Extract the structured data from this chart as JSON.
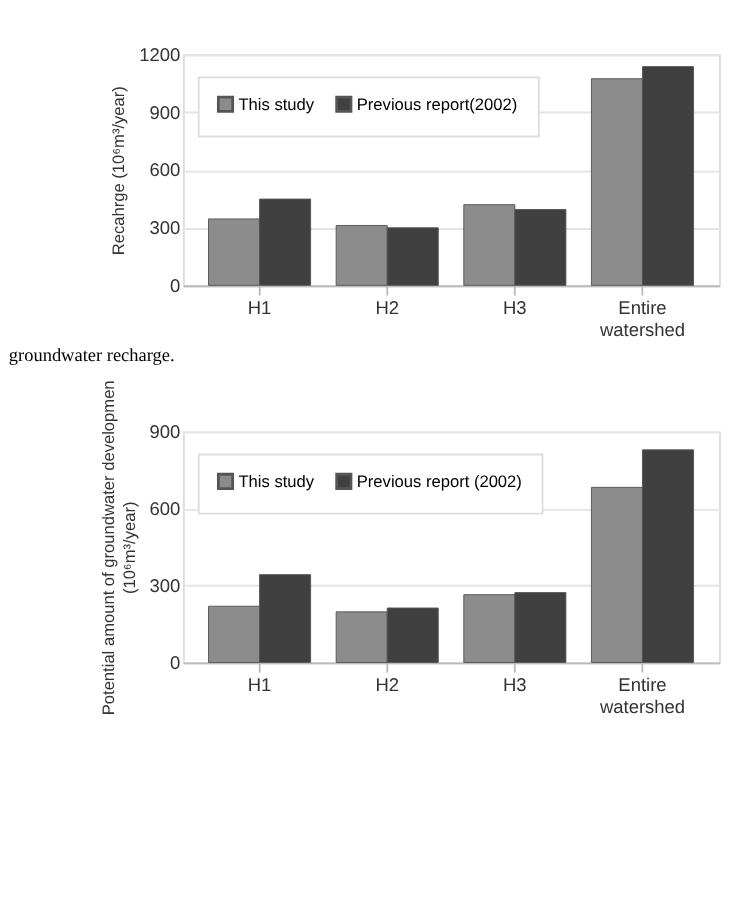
{
  "chart_data": [
    {
      "type": "bar",
      "categories": [
        "H1",
        "H2",
        "H3",
        "Entire watershed"
      ],
      "ylabel": "Recahrge (10⁶m³/year)",
      "ylim": [
        0,
        1200
      ],
      "yticks": [
        0,
        300,
        600,
        900,
        1200
      ],
      "grid": "y",
      "legend": "top left",
      "series": [
        {
          "name": "This study",
          "color": "#8c8c8c",
          "values": [
            345,
            311,
            419,
            1073
          ]
        },
        {
          "name": "Previous report(2002)",
          "color": "#404040",
          "values": [
            448,
            299,
            394,
            1136
          ]
        }
      ],
      "annotations": [
        "groundwater recharge."
      ]
    },
    {
      "type": "bar",
      "categories": [
        "H1",
        "H2",
        "H3",
        "Entire watershed"
      ],
      "ylabel": "Potential amount of groundwater developmen\n(10⁶m³/year)",
      "ylim": [
        0,
        900
      ],
      "yticks": [
        0,
        300,
        600,
        900
      ],
      "grid": "y",
      "legend": "top left",
      "series": [
        {
          "name": "This study",
          "color": "#8c8c8c",
          "values": [
            219,
            197,
            264,
            682
          ]
        },
        {
          "name": "Previous report (2002)",
          "color": "#404040",
          "values": [
            342,
            212,
            272,
            828
          ]
        }
      ]
    }
  ]
}
